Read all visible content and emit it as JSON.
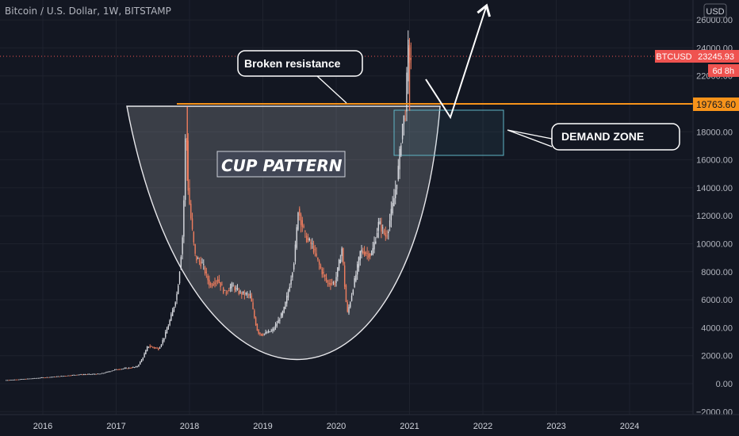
{
  "header": {
    "title": "Bitcoin / U.S. Dollar, 1W, BITSTAMP"
  },
  "price_axis": {
    "currency": "USD"
  },
  "badges": {
    "symbol": "BTCUSD",
    "last_price": "23245.93",
    "countdown": "6d 8h",
    "resistance_price": "19763.60"
  },
  "annotations": {
    "broken_resistance": "Broken resistance",
    "cup_pattern": "CUP PATTERN",
    "demand_zone": "DEMAND ZONE"
  },
  "colors": {
    "background": "#131722",
    "up_candle": "#d8dae0",
    "down_candle": "#ef7d5e",
    "resistance_line": "#f7931a",
    "last_price_line": "#ef5350",
    "demand_zone_border": "#5fb6c6",
    "text": "#b2b5be"
  },
  "chart_data": {
    "type": "candlestick",
    "title": "Bitcoin / U.S. Dollar, 1W, BITSTAMP",
    "ylabel": "USD",
    "ylim": [
      -2000,
      26000
    ],
    "y_ticks": [
      "−2000.00",
      "0.00",
      "2000.00",
      "4000.00",
      "6000.00",
      "8000.00",
      "10000.00",
      "12000.00",
      "14000.00",
      "16000.00",
      "18000.00",
      "20000.00",
      "22000.00",
      "24000.00",
      "26000.00"
    ],
    "x_ticks": [
      "2016",
      "2017",
      "2018",
      "2019",
      "2020",
      "2021",
      "2022",
      "2023",
      "2024"
    ],
    "resistance_level": 19763.6,
    "last_price": 23245.93,
    "price_path": [
      {
        "x": 2015.5,
        "y": 250
      },
      {
        "x": 2016.0,
        "y": 430
      },
      {
        "x": 2016.5,
        "y": 650
      },
      {
        "x": 2016.8,
        "y": 700
      },
      {
        "x": 2017.0,
        "y": 1000
      },
      {
        "x": 2017.3,
        "y": 1200
      },
      {
        "x": 2017.45,
        "y": 2700
      },
      {
        "x": 2017.6,
        "y": 2500
      },
      {
        "x": 2017.75,
        "y": 4500
      },
      {
        "x": 2017.85,
        "y": 6500
      },
      {
        "x": 2017.93,
        "y": 11000
      },
      {
        "x": 2017.97,
        "y": 19600
      },
      {
        "x": 2018.0,
        "y": 14000
      },
      {
        "x": 2018.1,
        "y": 9000
      },
      {
        "x": 2018.2,
        "y": 8500
      },
      {
        "x": 2018.3,
        "y": 7000
      },
      {
        "x": 2018.4,
        "y": 7500
      },
      {
        "x": 2018.5,
        "y": 6500
      },
      {
        "x": 2018.6,
        "y": 7000
      },
      {
        "x": 2018.7,
        "y": 6500
      },
      {
        "x": 2018.85,
        "y": 6300
      },
      {
        "x": 2018.95,
        "y": 3700
      },
      {
        "x": 2019.0,
        "y": 3500
      },
      {
        "x": 2019.15,
        "y": 3800
      },
      {
        "x": 2019.3,
        "y": 5200
      },
      {
        "x": 2019.45,
        "y": 9000
      },
      {
        "x": 2019.5,
        "y": 12500
      },
      {
        "x": 2019.6,
        "y": 10500
      },
      {
        "x": 2019.7,
        "y": 9800
      },
      {
        "x": 2019.8,
        "y": 8300
      },
      {
        "x": 2019.9,
        "y": 7200
      },
      {
        "x": 2020.0,
        "y": 7200
      },
      {
        "x": 2020.1,
        "y": 9800
      },
      {
        "x": 2020.17,
        "y": 5000
      },
      {
        "x": 2020.25,
        "y": 6900
      },
      {
        "x": 2020.35,
        "y": 9500
      },
      {
        "x": 2020.5,
        "y": 9200
      },
      {
        "x": 2020.6,
        "y": 11500
      },
      {
        "x": 2020.7,
        "y": 10500
      },
      {
        "x": 2020.8,
        "y": 13000
      },
      {
        "x": 2020.87,
        "y": 15500
      },
      {
        "x": 2020.92,
        "y": 18500
      },
      {
        "x": 2020.96,
        "y": 19300
      },
      {
        "x": 2021.0,
        "y": 24000
      },
      {
        "x": 2021.02,
        "y": 23245.93
      }
    ]
  }
}
